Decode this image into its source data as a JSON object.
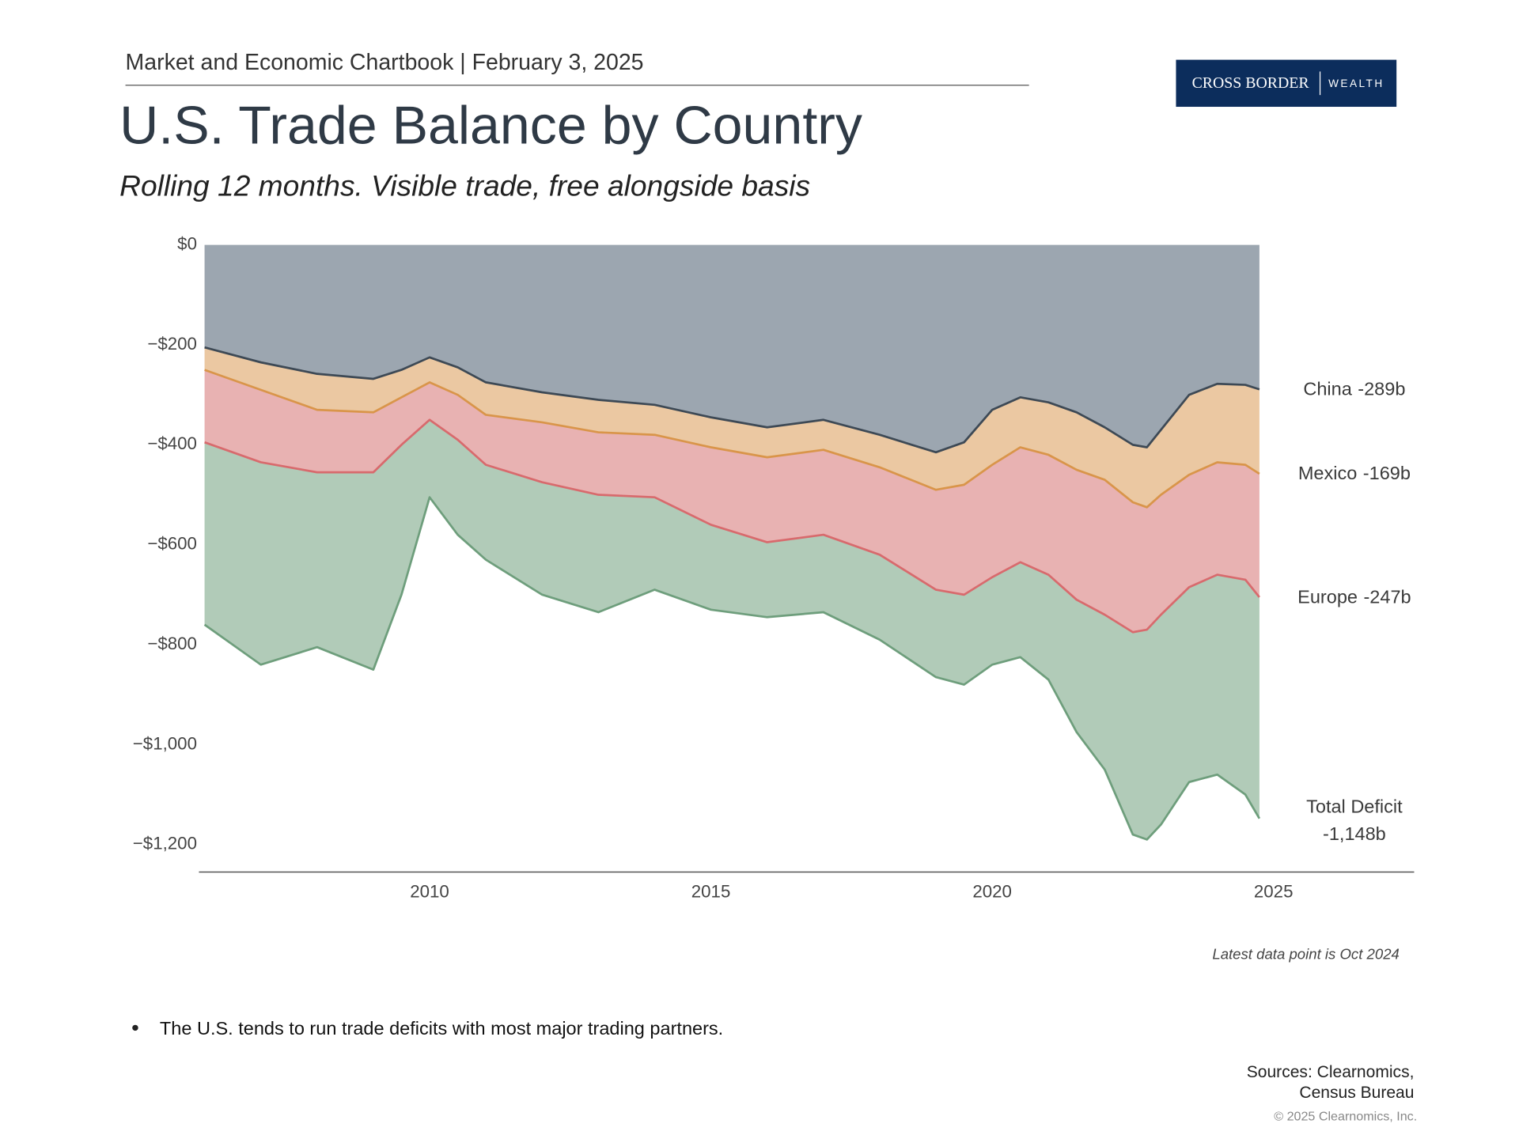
{
  "header": {
    "text": "Market and Economic Chartbook | February 3, 2025",
    "logo": [
      "CROSS BORDER",
      "WEALTH"
    ]
  },
  "chart_data": {
    "type": "stacked_area",
    "title": "U.S. Trade Balance by Country",
    "subtitle": "Rolling 12 months. Visible trade, free alongside basis",
    "note": "Latest data point is Oct 2024",
    "x": [
      2006,
      2007,
      2008,
      2009,
      2009.5,
      2010,
      2010.5,
      2011,
      2012,
      2013,
      2014,
      2015,
      2016,
      2017,
      2018,
      2019,
      2019.5,
      2020,
      2020.5,
      2021,
      2021.5,
      2022,
      2022.5,
      2022.75,
      2023,
      2023.5,
      2024,
      2024.5,
      2024.75
    ],
    "series": [
      {
        "name": "China",
        "stack": true,
        "color": "#3d4955",
        "fill": "#9ca6b0",
        "values": [
          -205,
          -235,
          -258,
          -268,
          -250,
          -225,
          -245,
          -275,
          -295,
          -310,
          -320,
          -345,
          -365,
          -350,
          -380,
          -415,
          -395,
          -330,
          -305,
          -315,
          -335,
          -365,
          -400,
          -405,
          -370,
          -300,
          -278,
          -280,
          -289
        ],
        "value_labels": [
          null,
          null,
          null,
          null,
          null,
          null,
          null,
          null,
          null,
          null,
          null,
          null,
          null,
          null,
          null,
          null,
          null,
          null,
          null,
          null,
          null,
          null,
          null,
          null,
          null,
          null,
          null,
          null,
          "-289b"
        ]
      },
      {
        "name": "Mexico",
        "stack": true,
        "color": "#d9954a",
        "fill": "#ebc8a2",
        "values": [
          -45,
          -55,
          -72,
          -67,
          -55,
          -50,
          -55,
          -65,
          -60,
          -65,
          -60,
          -60,
          -60,
          -60,
          -65,
          -75,
          -85,
          -110,
          -100,
          -105,
          -115,
          -105,
          -115,
          -120,
          -130,
          -160,
          -157,
          -160,
          -169
        ],
        "value_labels": [
          null,
          null,
          null,
          null,
          null,
          null,
          null,
          null,
          null,
          null,
          null,
          null,
          null,
          null,
          null,
          null,
          null,
          null,
          null,
          null,
          null,
          null,
          null,
          null,
          null,
          null,
          null,
          null,
          "-169b"
        ]
      },
      {
        "name": "Europe",
        "stack": true,
        "color": "#d86a6d",
        "fill": "#e8b2b2",
        "values": [
          -145,
          -145,
          -125,
          -120,
          -95,
          -75,
          -90,
          -100,
          -120,
          -125,
          -125,
          -155,
          -170,
          -170,
          -175,
          -200,
          -220,
          -225,
          -230,
          -240,
          -260,
          -270,
          -260,
          -245,
          -240,
          -225,
          -225,
          -230,
          -247
        ],
        "value_labels": [
          null,
          null,
          null,
          null,
          null,
          null,
          null,
          null,
          null,
          null,
          null,
          null,
          null,
          null,
          null,
          null,
          null,
          null,
          null,
          null,
          null,
          null,
          null,
          null,
          null,
          null,
          null,
          null,
          "-247b"
        ]
      },
      {
        "name": "Total Deficit",
        "stack": false,
        "color": "#6e9e7c",
        "fill": "#b1cbb8",
        "values": [
          -760,
          -840,
          -805,
          -850,
          -700,
          -505,
          -580,
          -630,
          -700,
          -735,
          -690,
          -730,
          -745,
          -735,
          -790,
          -865,
          -880,
          -840,
          -825,
          -870,
          -975,
          -1050,
          -1180,
          -1190,
          -1160,
          -1075,
          -1060,
          -1100,
          -1148
        ],
        "value_labels": [
          null,
          null,
          null,
          null,
          null,
          null,
          null,
          null,
          null,
          null,
          null,
          null,
          null,
          null,
          null,
          null,
          null,
          null,
          null,
          null,
          null,
          null,
          null,
          null,
          null,
          null,
          null,
          null,
          "-1,148b"
        ]
      }
    ],
    "xlim": [
      2005.9,
      2027.5
    ],
    "xticks": [
      2010,
      2015,
      2020,
      2025
    ],
    "ylim": [
      -1255,
      0
    ],
    "yticks": [
      {
        "value": 0,
        "label": "$0"
      },
      {
        "value": -200,
        "label": "−$200"
      },
      {
        "value": -400,
        "label": "−$400"
      },
      {
        "value": -600,
        "label": "−$600"
      },
      {
        "value": -800,
        "label": "−$800"
      },
      {
        "value": -1000,
        "label": "−$1,000"
      },
      {
        "value": -1200,
        "label": "−$1,200"
      }
    ],
    "grid": false
  },
  "bullets": [
    "The U.S. tends to run trade deficits with most major trading partners."
  ],
  "sources": [
    "Sources: Clearnomics,",
    "Census Bureau"
  ],
  "copyright": "© 2025 Clearnomics, Inc."
}
